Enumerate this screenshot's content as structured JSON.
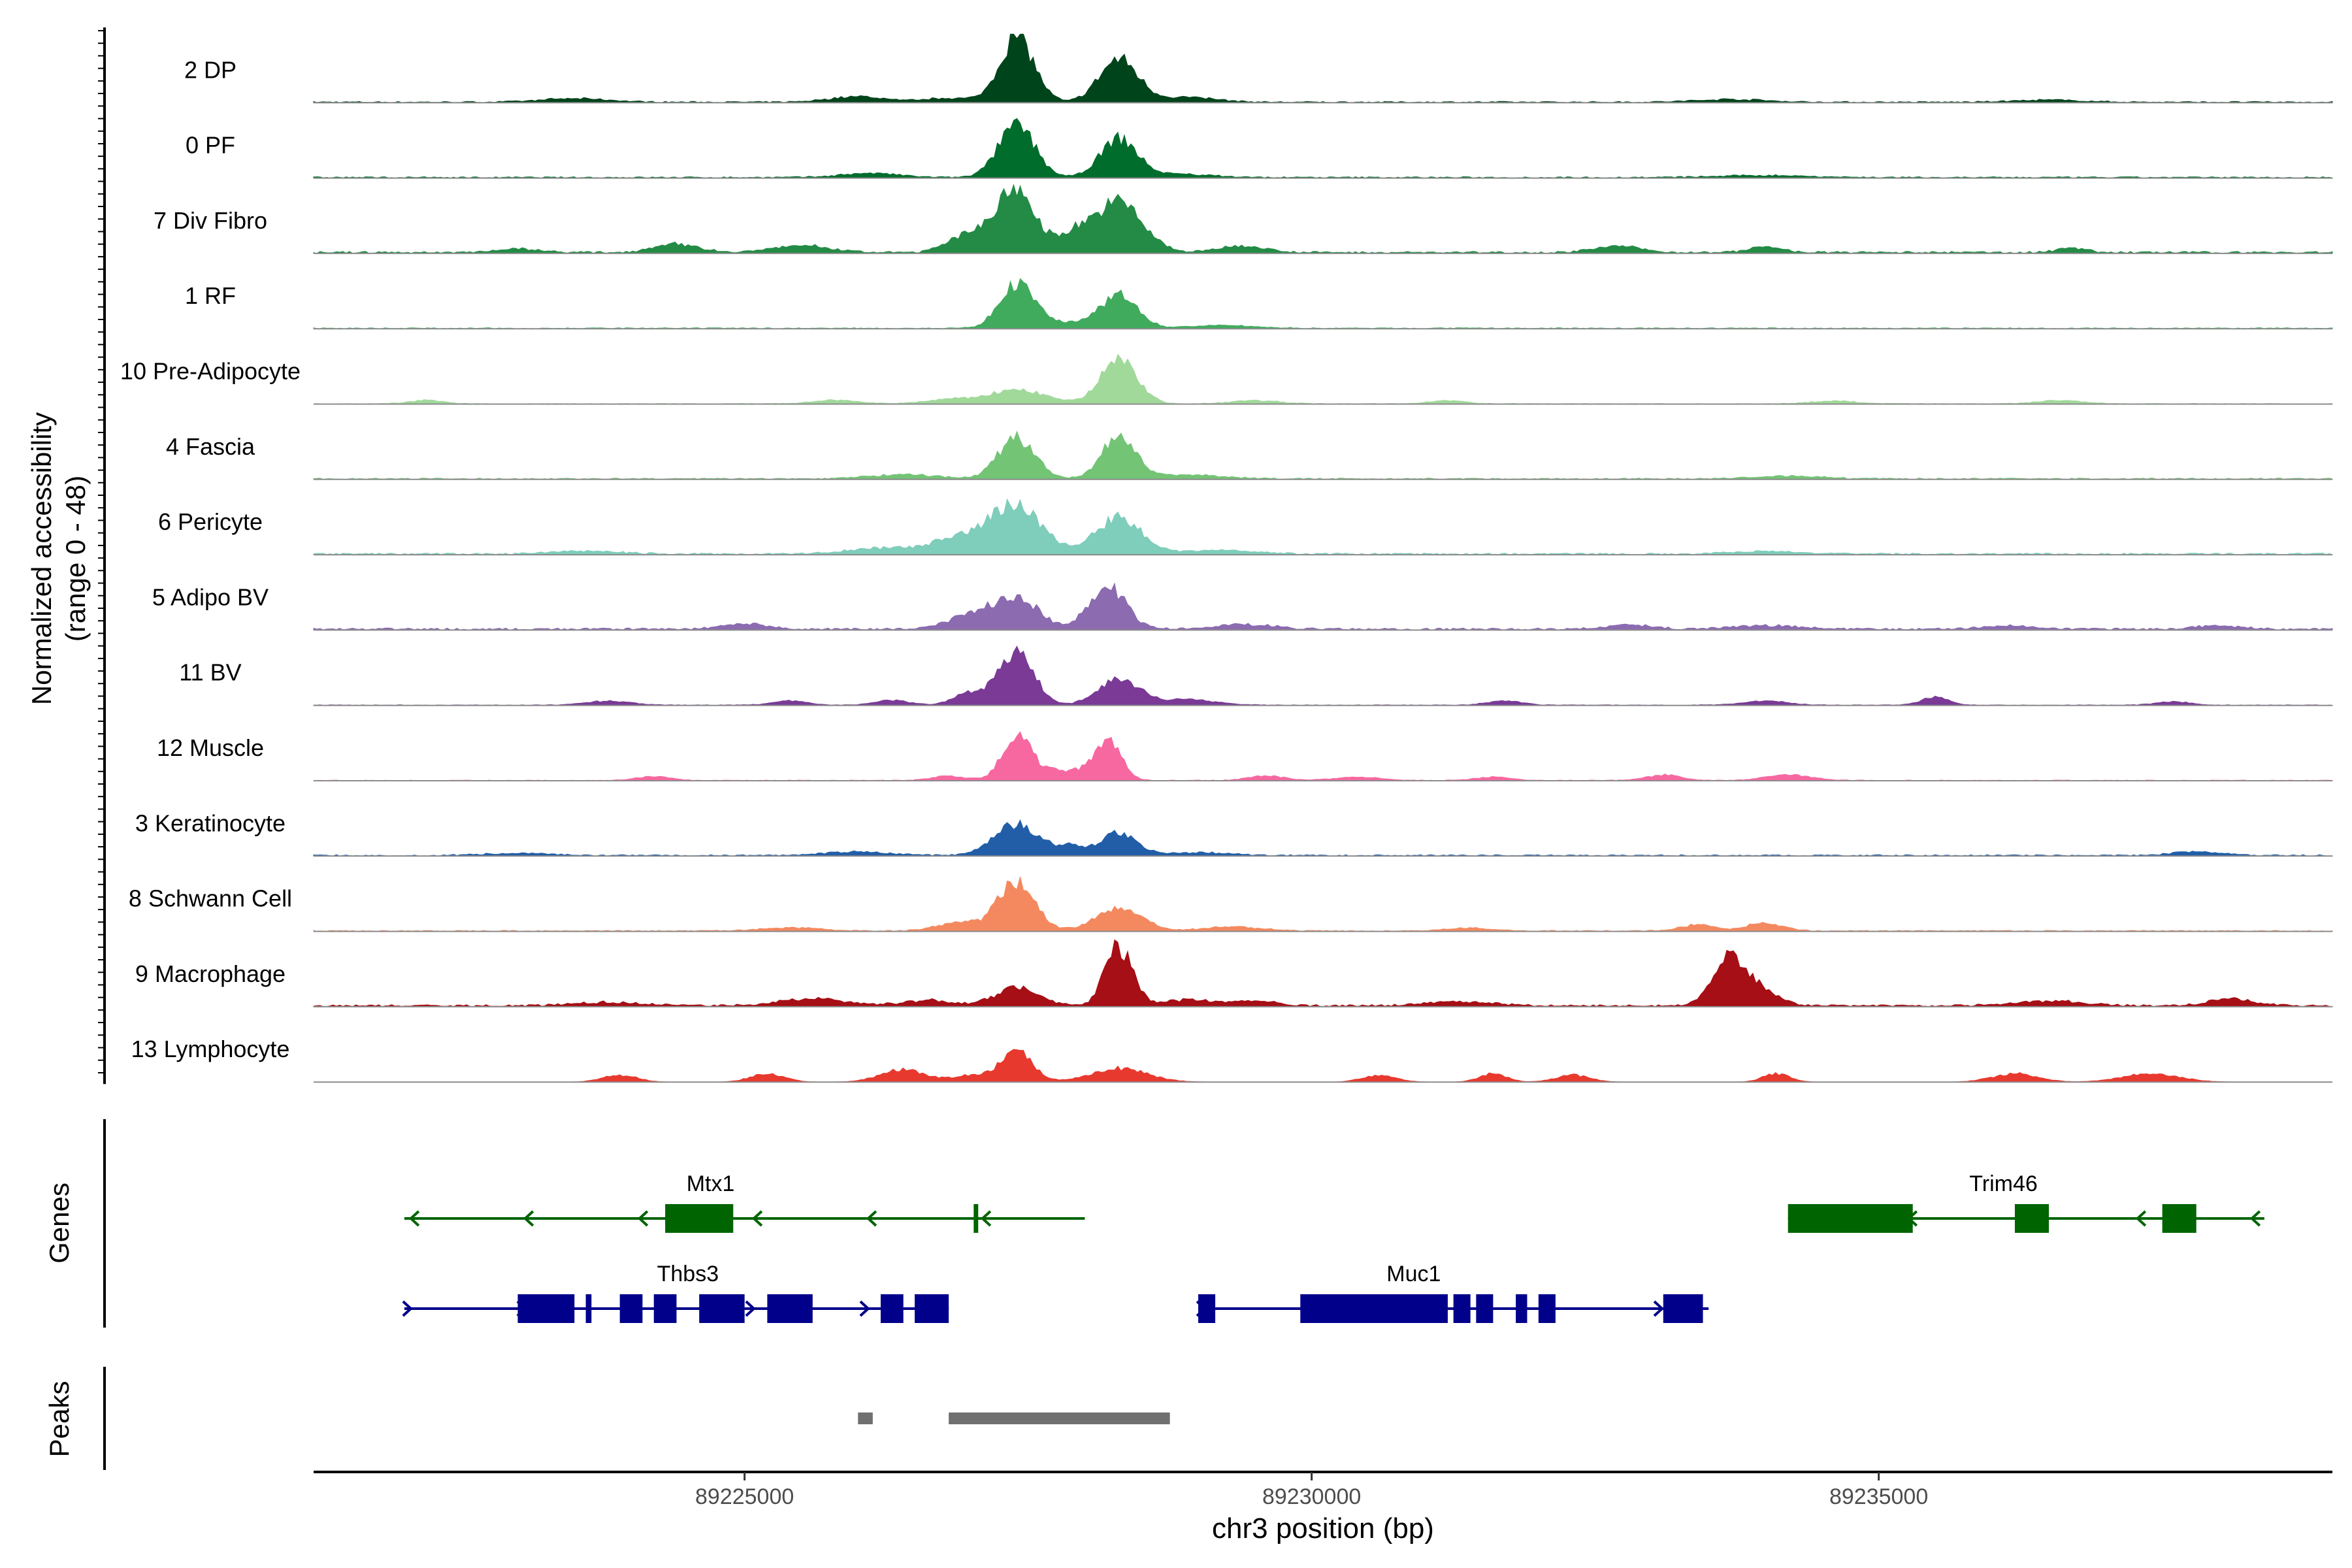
{
  "chart_data": {
    "type": "area",
    "title": "",
    "xlabel": "chr3 position (bp)",
    "ylabel": "Normalized accessibility",
    "ylabel_sub": "(range 0 - 48)",
    "yrange": [
      0,
      48
    ],
    "xlim": [
      89221200,
      89239000
    ],
    "xticks": [
      89225000,
      89230000,
      89235000
    ],
    "tracks": [
      {
        "name": "2 DP",
        "color": "#00441B",
        "peaks": [
          [
            89227400,
            0.95,
            150
          ],
          [
            89228300,
            0.62,
            170
          ]
        ],
        "bumps": [
          [
            89226000,
            0.08,
            250
          ],
          [
            89223500,
            0.05,
            300
          ],
          [
            89226800,
            0.06,
            200
          ],
          [
            89228900,
            0.07,
            250
          ],
          [
            89233700,
            0.04,
            300
          ],
          [
            89236500,
            0.03,
            300
          ]
        ],
        "noise": 0.02
      },
      {
        "name": "0 PF",
        "color": "#006D2C",
        "peaks": [
          [
            89227400,
            0.75,
            160
          ],
          [
            89228300,
            0.55,
            160
          ]
        ],
        "bumps": [
          [
            89226100,
            0.06,
            260
          ],
          [
            89228800,
            0.05,
            300
          ],
          [
            89234000,
            0.03,
            400
          ]
        ],
        "noise": 0.02
      },
      {
        "name": "7 Div Fibro",
        "color": "#238B45",
        "peaks": [
          [
            89227400,
            0.9,
            160
          ],
          [
            89228300,
            0.72,
            210
          ],
          [
            89227000,
            0.3,
            180
          ],
          [
            89227900,
            0.25,
            150
          ]
        ],
        "bumps": [
          [
            89224400,
            0.12,
            200
          ],
          [
            89225500,
            0.1,
            250
          ],
          [
            89229400,
            0.1,
            200
          ],
          [
            89232700,
            0.09,
            200
          ],
          [
            89234000,
            0.08,
            150
          ],
          [
            89236700,
            0.07,
            120
          ],
          [
            89223000,
            0.05,
            200
          ]
        ],
        "noise": 0.03
      },
      {
        "name": "1 RF",
        "color": "#41AB5D",
        "peaks": [
          [
            89227400,
            0.65,
            150
          ],
          [
            89228300,
            0.48,
            160
          ]
        ],
        "bumps": [
          [
            89227800,
            0.08,
            200
          ],
          [
            89229200,
            0.04,
            300
          ]
        ],
        "noise": 0.015
      },
      {
        "name": "10 Pre-Adipocyte",
        "color": "#A1D99B",
        "peaks": [
          [
            89228300,
            0.65,
            160
          ],
          [
            89227400,
            0.2,
            250
          ]
        ],
        "bumps": [
          [
            89222200,
            0.05,
            150
          ],
          [
            89225800,
            0.05,
            200
          ],
          [
            89226800,
            0.06,
            200
          ],
          [
            89229500,
            0.05,
            200
          ],
          [
            89231200,
            0.05,
            150
          ],
          [
            89234600,
            0.04,
            200
          ],
          [
            89236600,
            0.05,
            200
          ]
        ],
        "noise": 0.01
      },
      {
        "name": "4 Fascia",
        "color": "#74C476",
        "peaks": [
          [
            89227400,
            0.6,
            160
          ],
          [
            89228300,
            0.62,
            150
          ]
        ],
        "bumps": [
          [
            89226400,
            0.06,
            300
          ],
          [
            89228900,
            0.06,
            300
          ],
          [
            89234200,
            0.04,
            300
          ]
        ],
        "noise": 0.02
      },
      {
        "name": "6 Pericyte",
        "color": "#7FCDBB",
        "peaks": [
          [
            89227400,
            0.7,
            220
          ],
          [
            89228300,
            0.52,
            200
          ],
          [
            89226900,
            0.22,
            250
          ]
        ],
        "bumps": [
          [
            89226200,
            0.08,
            300
          ],
          [
            89229200,
            0.06,
            300
          ],
          [
            89223600,
            0.04,
            300
          ],
          [
            89234000,
            0.04,
            300
          ]
        ],
        "noise": 0.025
      },
      {
        "name": "5 Adipo BV",
        "color": "#8C6BB1",
        "peaks": [
          [
            89227400,
            0.45,
            190
          ],
          [
            89228200,
            0.62,
            160
          ],
          [
            89227000,
            0.2,
            200
          ]
        ],
        "bumps": [
          [
            89225000,
            0.08,
            200
          ],
          [
            89229400,
            0.07,
            250
          ],
          [
            89232800,
            0.06,
            200
          ],
          [
            89234000,
            0.05,
            300
          ],
          [
            89236100,
            0.05,
            200
          ],
          [
            89238000,
            0.05,
            200
          ]
        ],
        "noise": 0.03
      },
      {
        "name": "11 BV",
        "color": "#7A3A96",
        "peaks": [
          [
            89227400,
            0.8,
            150
          ],
          [
            89228300,
            0.38,
            180
          ],
          [
            89227000,
            0.18,
            150
          ]
        ],
        "bumps": [
          [
            89223800,
            0.06,
            200
          ],
          [
            89225400,
            0.06,
            150
          ],
          [
            89226300,
            0.07,
            150
          ],
          [
            89228900,
            0.08,
            250
          ],
          [
            89231700,
            0.06,
            150
          ],
          [
            89234000,
            0.06,
            200
          ],
          [
            89235500,
            0.12,
            120
          ],
          [
            89237600,
            0.05,
            150
          ]
        ],
        "noise": 0.01
      },
      {
        "name": "12 Muscle",
        "color": "#F768A1",
        "peaks": [
          [
            89227400,
            0.6,
            130
          ],
          [
            89228200,
            0.55,
            120
          ],
          [
            89227800,
            0.15,
            200
          ]
        ],
        "bumps": [
          [
            89224200,
            0.06,
            150
          ],
          [
            89226800,
            0.06,
            150
          ],
          [
            89229600,
            0.07,
            150
          ],
          [
            89230400,
            0.05,
            200
          ],
          [
            89233100,
            0.08,
            150
          ],
          [
            89234200,
            0.08,
            200
          ],
          [
            89231600,
            0.05,
            150
          ]
        ],
        "noise": 0.01
      },
      {
        "name": "3 Keratinocyte",
        "color": "#225EA8",
        "peaks": [
          [
            89227400,
            0.45,
            200
          ],
          [
            89228300,
            0.33,
            150
          ],
          [
            89227900,
            0.12,
            120
          ]
        ],
        "bumps": [
          [
            89226000,
            0.05,
            300
          ],
          [
            89229000,
            0.04,
            300
          ],
          [
            89237800,
            0.06,
            200
          ],
          [
            89223000,
            0.03,
            300
          ]
        ],
        "noise": 0.02
      },
      {
        "name": "8 Schwann Cell",
        "color": "#F4895F",
        "peaks": [
          [
            89227400,
            0.72,
            160
          ],
          [
            89228300,
            0.33,
            200
          ],
          [
            89226900,
            0.12,
            200
          ]
        ],
        "bumps": [
          [
            89225400,
            0.05,
            250
          ],
          [
            89229300,
            0.06,
            250
          ],
          [
            89233400,
            0.09,
            150
          ],
          [
            89234000,
            0.12,
            150
          ],
          [
            89231400,
            0.04,
            200
          ]
        ],
        "noise": 0.015
      },
      {
        "name": "9 Macrophage",
        "color": "#A50F15",
        "peaks": [
          [
            89228300,
            0.85,
            120
          ],
          [
            89233700,
            0.72,
            150
          ],
          [
            89227400,
            0.25,
            200
          ]
        ],
        "bumps": [
          [
            89225600,
            0.1,
            300
          ],
          [
            89226600,
            0.08,
            200
          ],
          [
            89228900,
            0.09,
            200
          ],
          [
            89229500,
            0.07,
            200
          ],
          [
            89231300,
            0.06,
            300
          ],
          [
            89234000,
            0.15,
            150
          ],
          [
            89236500,
            0.07,
            300
          ],
          [
            89238100,
            0.1,
            200
          ],
          [
            89223800,
            0.05,
            300
          ]
        ],
        "noise": 0.03
      },
      {
        "name": "13 Lymphocyte",
        "color": "#E8392E",
        "peaks": [
          [
            89227400,
            0.45,
            140
          ],
          [
            89228300,
            0.2,
            250
          ]
        ],
        "bumps": [
          [
            89223900,
            0.1,
            150
          ],
          [
            89225200,
            0.12,
            150
          ],
          [
            89226400,
            0.18,
            200
          ],
          [
            89227000,
            0.1,
            150
          ],
          [
            89230600,
            0.1,
            150
          ],
          [
            89231600,
            0.12,
            120
          ],
          [
            89232300,
            0.1,
            150
          ],
          [
            89234100,
            0.12,
            120
          ],
          [
            89236200,
            0.12,
            200
          ],
          [
            89237400,
            0.12,
            250
          ]
        ],
        "noise": 0.0
      }
    ],
    "genes": {
      "track_label": "Genes",
      "items": [
        {
          "name": "Mtx1",
          "strand": "-",
          "row": 0,
          "color": "#006400",
          "start": 89222000,
          "end": 89228000,
          "exons": [
            [
              89224300,
              89224900
            ],
            [
              89227020,
              89227060
            ]
          ]
        },
        {
          "name": "Trim46",
          "strand": "-",
          "row": 0,
          "color": "#006400",
          "start": 89234200,
          "end": 89238400,
          "exons": [
            [
              89234200,
              89235300
            ],
            [
              89236200,
              89236500
            ],
            [
              89237500,
              89237800
            ]
          ]
        },
        {
          "name": "Thbs3",
          "strand": "+",
          "row": 1,
          "color": "#00008B",
          "start": 89222000,
          "end": 89226800,
          "exons": [
            [
              89223000,
              89223500
            ],
            [
              89223600,
              89223650
            ],
            [
              89223900,
              89224100
            ],
            [
              89224200,
              89224400
            ],
            [
              89224600,
              89225000
            ],
            [
              89225200,
              89225600
            ],
            [
              89226200,
              89226400
            ],
            [
              89226500,
              89226800
            ]
          ]
        },
        {
          "name": "Muc1",
          "strand": "+",
          "row": 1,
          "color": "#00008B",
          "start": 89229000,
          "end": 89233500,
          "exons": [
            [
              89229000,
              89229150
            ],
            [
              89229900,
              89231200
            ],
            [
              89231250,
              89231400
            ],
            [
              89231450,
              89231600
            ],
            [
              89231800,
              89231900
            ],
            [
              89232000,
              89232150
            ],
            [
              89233100,
              89233450
            ]
          ]
        }
      ]
    },
    "peaks_track": {
      "track_label": "Peaks",
      "regions": [
        [
          89226000,
          89226130
        ],
        [
          89226800,
          89228750
        ]
      ]
    }
  }
}
